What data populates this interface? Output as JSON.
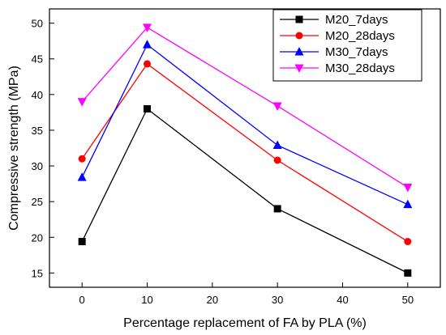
{
  "chart_data": {
    "type": "line",
    "title": "",
    "xlabel": "Percentage replacement of FA by PLA (%)",
    "ylabel": "Compressive strength (MPa)",
    "x": [
      0,
      10,
      30,
      50
    ],
    "xticks": [
      "0",
      "10",
      "20",
      "30",
      "40",
      "50"
    ],
    "yticks": [
      "15",
      "20",
      "25",
      "30",
      "35",
      "40",
      "45",
      "50"
    ],
    "xlim": [
      -5,
      55
    ],
    "ylim": [
      13,
      52
    ],
    "grid": false,
    "legend_position": "top-right",
    "series": [
      {
        "name": "M20_7days",
        "color": "#000000",
        "marker": "square",
        "values": [
          19.4,
          38.0,
          24.0,
          15.0
        ]
      },
      {
        "name": "M20_28days",
        "color": "#ff0000",
        "marker": "circle",
        "values": [
          31.0,
          44.3,
          30.8,
          19.4
        ]
      },
      {
        "name": "M30_7days",
        "color": "#0000ff",
        "marker": "triangle-up",
        "values": [
          28.4,
          47.0,
          32.9,
          24.6
        ]
      },
      {
        "name": "M30_28days",
        "color": "#ff00ff",
        "marker": "triangle-down",
        "values": [
          39.0,
          49.4,
          38.4,
          27.0
        ]
      }
    ]
  }
}
